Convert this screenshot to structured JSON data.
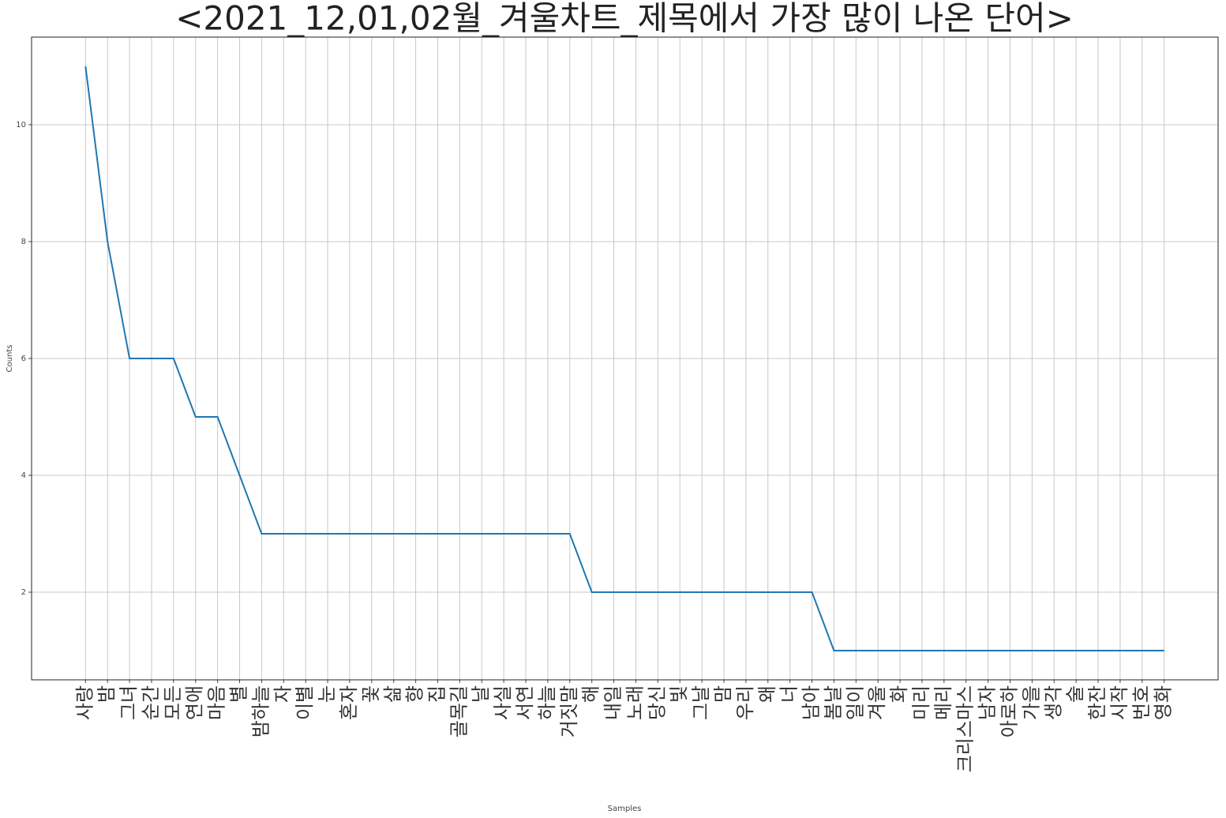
{
  "chart_data": {
    "type": "line",
    "title": "<2021_12,01,02월_겨울차트_제목에서 가장 많이 나온 단어>",
    "x_label": "Samples",
    "y_label": "Counts",
    "categories": [
      "사랑",
      "밤",
      "그녀",
      "순간",
      "모든",
      "연애",
      "마음",
      "별",
      "밤하늘",
      "자",
      "이별",
      "눈",
      "혼자",
      "꽃",
      "삶",
      "향",
      "집",
      "골목길",
      "날",
      "사실",
      "서연",
      "하늘",
      "거짓말",
      "해",
      "내일",
      "노래",
      "당신",
      "빛",
      "그날",
      "맘",
      "우리",
      "왜",
      "너",
      "남아",
      "봄날",
      "일이",
      "겨울",
      "화",
      "미리",
      "메리",
      "크리스마스",
      "남자",
      "아로하",
      "가을",
      "생각",
      "술",
      "한잔",
      "시작",
      "번호",
      "영화"
    ],
    "series": [
      {
        "name": "Counts",
        "color": "#1f77b4",
        "values": [
          11,
          8,
          6,
          6,
          6,
          5,
          5,
          4,
          3,
          3,
          3,
          3,
          3,
          3,
          3,
          3,
          3,
          3,
          3,
          3,
          3,
          3,
          3,
          2,
          2,
          2,
          2,
          2,
          2,
          2,
          2,
          2,
          2,
          2,
          1,
          1,
          1,
          1,
          1,
          1,
          1,
          1,
          1,
          1,
          1,
          1,
          1,
          1,
          1,
          1
        ]
      }
    ],
    "ylim": [
      0.5,
      11.5
    ],
    "yticks": [
      2,
      4,
      6,
      8,
      10
    ],
    "grid": true
  }
}
